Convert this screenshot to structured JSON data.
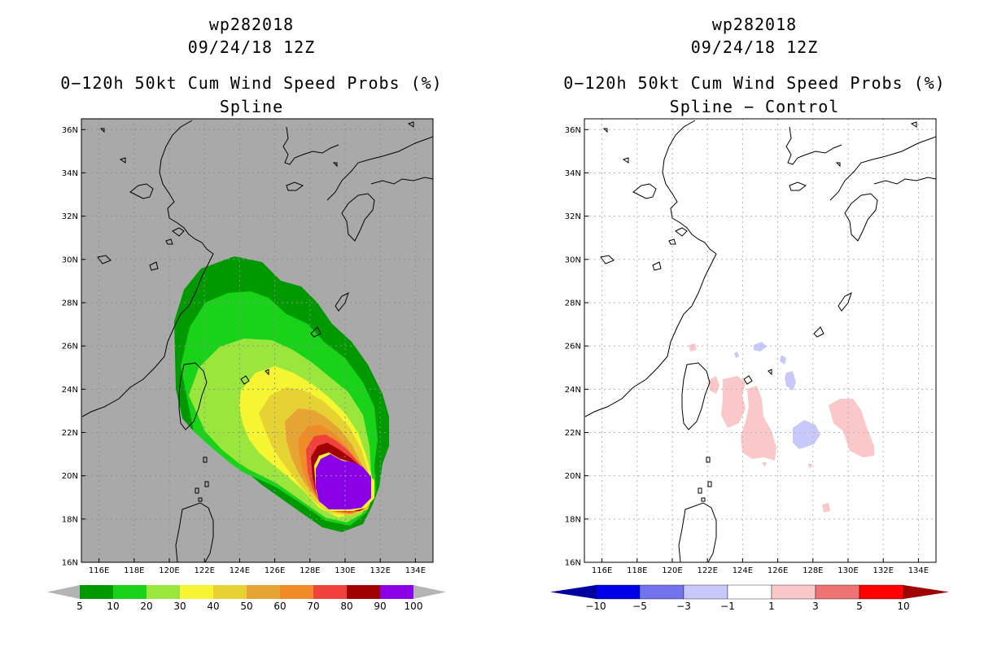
{
  "left": {
    "title_storm": "wp282018",
    "title_time": "09/24/18 12Z",
    "title_product": "0−120h 50kt Cum Wind Speed Probs (%)",
    "title_sub": "Spline",
    "background": "#a9a9a9",
    "colorbar_labels": [
      "5",
      "10",
      "20",
      "30",
      "40",
      "50",
      "60",
      "70",
      "80",
      "90",
      "100"
    ],
    "colorbar_colors": [
      "#009a00",
      "#19d319",
      "#9be63c",
      "#f5f532",
      "#e6d232",
      "#e6a532",
      "#f08c28",
      "#f0413c",
      "#a00000",
      "#8b00e6"
    ],
    "colorbar_end_color": "#b4b4b4"
  },
  "right": {
    "title_storm": "wp282018",
    "title_time": "09/24/18 12Z",
    "title_product": "0−120h 50kt Cum Wind Speed Probs (%)",
    "title_sub": "Spline − Control",
    "background": "#ffffff",
    "colorbar_labels": [
      "−10",
      "−5",
      "−3",
      "−1",
      "1",
      "3",
      "5",
      "10"
    ],
    "colorbar_colors": [
      "#0000e6",
      "#7373f0",
      "#c8c8fa",
      "#ffffff",
      "#fac8c8",
      "#f07373",
      "#ff0000"
    ],
    "colorbar_low_color": "#0000a0",
    "colorbar_high_color": "#a00000"
  },
  "map": {
    "lat_labels": [
      "36N",
      "34N",
      "32N",
      "30N",
      "28N",
      "26N",
      "24N",
      "22N",
      "20N",
      "18N",
      "16N"
    ],
    "lon_labels": [
      "116E",
      "118E",
      "120E",
      "122E",
      "124E",
      "126E",
      "128E",
      "130E",
      "132E",
      "134E"
    ]
  }
}
